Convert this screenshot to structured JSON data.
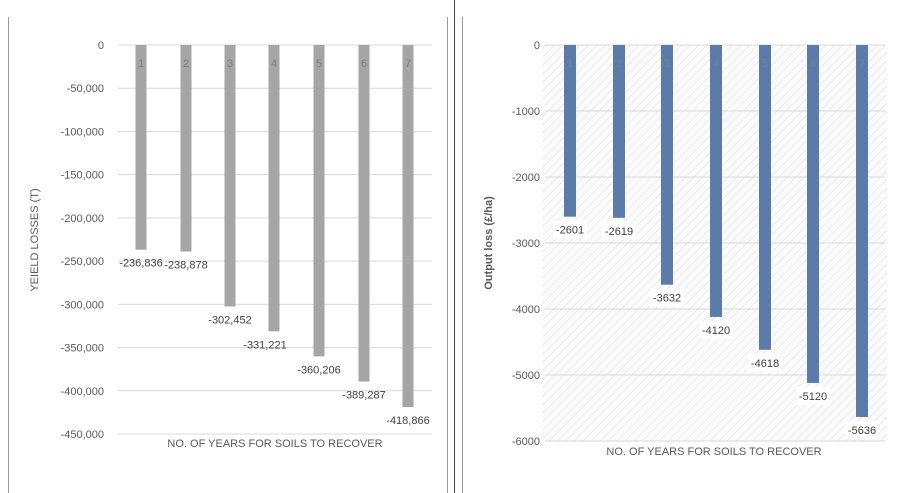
{
  "chart_data": [
    {
      "type": "bar",
      "categories": [
        "1",
        "2",
        "3",
        "4",
        "5",
        "6",
        "7"
      ],
      "values": [
        -236836,
        -238878,
        -302452,
        -331221,
        -360206,
        -389287,
        -418866
      ],
      "data_labels": [
        "-236,836",
        "-238,878",
        "-302,452",
        "-331,221",
        "-360,206",
        "-389,287",
        "-418,866"
      ],
      "title": "",
      "xlabel": "NO. OF YEARS FOR SOILS TO RECOVER",
      "ylabel": "YEIELD LOSSES (T)",
      "ylim": [
        -450000,
        0
      ],
      "yticks": [
        0,
        -50000,
        -100000,
        -150000,
        -200000,
        -250000,
        -300000,
        -350000,
        -400000,
        -450000
      ],
      "ytick_labels": [
        "0",
        "-50,000",
        "-100,000",
        "-150,000",
        "-200,000",
        "-250,000",
        "-300,000",
        "-350,000",
        "-400,000",
        "-450,000"
      ],
      "grid": true,
      "bar_color": "#a5a5a5",
      "background": "#ffffff"
    },
    {
      "type": "bar",
      "categories": [
        "1",
        "2",
        "3",
        "4",
        "5",
        "6",
        "7"
      ],
      "values": [
        -2601,
        -2619,
        -3632,
        -4120,
        -4618,
        -5120,
        -5636
      ],
      "data_labels": [
        "-2601",
        "-2619",
        "-3632",
        "-4120",
        "-4618",
        "-5120",
        "-5636"
      ],
      "title": "",
      "xlabel": "NO. OF YEARS FOR SOILS TO RECOVER",
      "ylabel": "Output loss (£/ha)",
      "ylim": [
        -6000,
        0
      ],
      "yticks": [
        0,
        -1000,
        -2000,
        -3000,
        -4000,
        -5000,
        -6000
      ],
      "ytick_labels": [
        "0",
        "-1000",
        "-2000",
        "-3000",
        "-4000",
        "-5000",
        "-6000"
      ],
      "grid": true,
      "bar_color": "#5b7bab",
      "background": "hatched"
    }
  ]
}
